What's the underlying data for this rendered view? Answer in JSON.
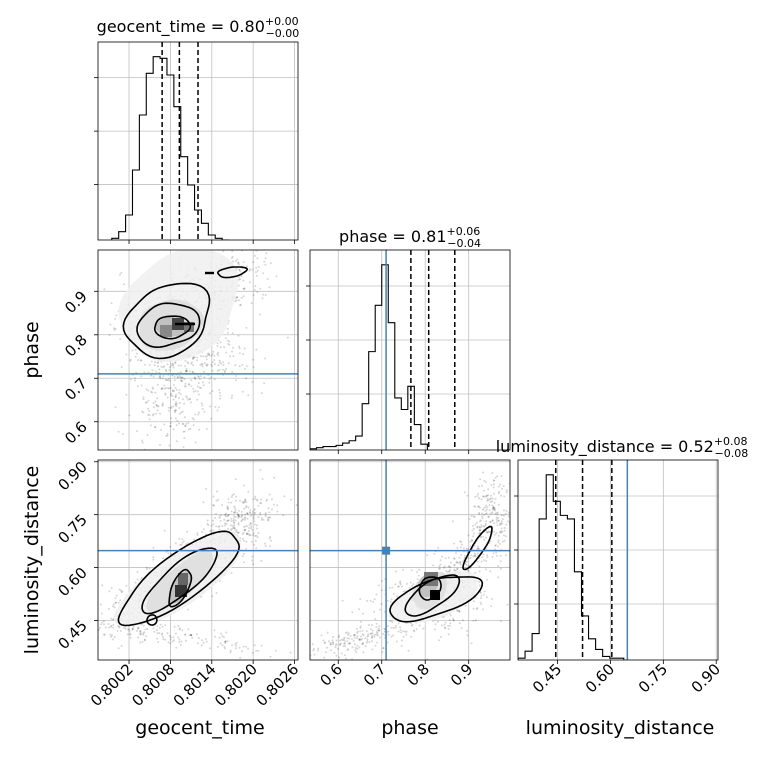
{
  "chart_data": {
    "type": "corner",
    "parameters": [
      "geocent_time",
      "phase",
      "luminosity_distance"
    ],
    "axis_labels": [
      "geocent_time",
      "phase",
      "luminosity_distance"
    ],
    "titles": [
      {
        "text": "geocent_time = 0.80",
        "sup": "+0.00",
        "sub": "−0.00"
      },
      {
        "text": "phase = 0.81",
        "sup": "+0.06",
        "sub": "−0.04"
      },
      {
        "text": "luminosity_distance = 0.52",
        "sup": "+0.08",
        "sub": "−0.08"
      }
    ],
    "ranges": [
      [
        0.79975,
        0.80265
      ],
      [
        0.535,
        0.995
      ],
      [
        0.338,
        0.905
      ]
    ],
    "ticks": [
      [
        "0.8002",
        "0.8008",
        "0.8014",
        "0.8020",
        "0.8026"
      ],
      [
        "0.6",
        "0.7",
        "0.8",
        "0.9"
      ],
      [
        "0.45",
        "0.60",
        "0.75",
        "0.90"
      ]
    ],
    "truths": [
      null,
      0.71,
      0.648
    ],
    "truth_color": "#4682b4",
    "quantiles": [
      [
        0.80068,
        0.80093,
        0.8012
      ],
      [
        0.767,
        0.808,
        0.868
      ],
      [
        0.445,
        0.521,
        0.604
      ]
    ],
    "histograms": [
      {
        "edges_start": 0.79995,
        "bin_width": 0.0001,
        "counts": [
          1,
          5,
          15,
          42,
          75,
          100,
          110,
          109,
          99,
          80,
          50,
          33,
          18,
          10,
          3,
          1,
          0
        ]
      },
      {
        "edges_start": 0.535,
        "bin_width": 0.015,
        "counts": [
          1,
          2,
          3,
          3,
          4,
          6,
          8,
          12,
          40,
          85,
          125,
          160,
          110,
          45,
          35,
          55,
          22,
          5
        ]
      },
      {
        "edges_start": 0.338,
        "bin_width": 0.02,
        "counts": [
          1,
          5,
          15,
          80,
          105,
          90,
          82,
          80,
          50,
          25,
          12,
          6,
          2,
          1,
          1
        ]
      }
    ],
    "contour_centers": [
      {
        "pair": [
          "geocent_time",
          "phase"
        ],
        "mode": [
          0.801,
          0.819
        ]
      },
      {
        "pair": [
          "geocent_time",
          "luminosity_distance"
        ],
        "mode": [
          0.80102,
          0.518
        ]
      },
      {
        "pair": [
          "phase",
          "luminosity_distance"
        ],
        "mode": [
          0.813,
          0.518
        ]
      }
    ],
    "grid": true,
    "color": "#000000"
  }
}
